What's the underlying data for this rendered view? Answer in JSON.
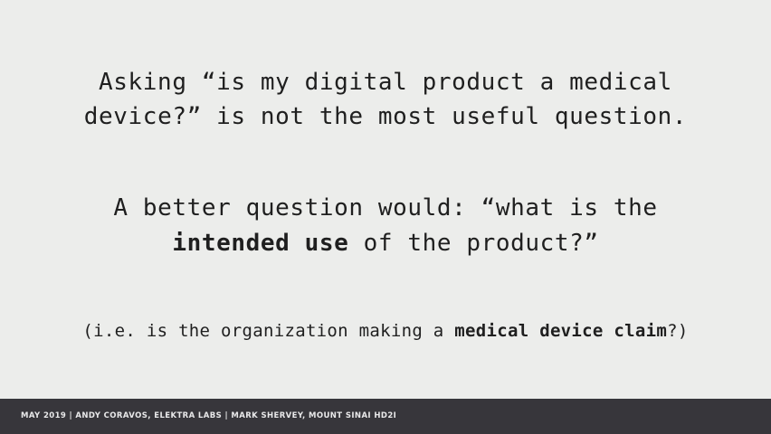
{
  "slide": {
    "paragraph1": {
      "line1": "Asking “is my digital product a medical",
      "line2": "device?” is not the most useful question."
    },
    "paragraph2": {
      "line1": "A better question would: “what is the",
      "line2_bold": "intended use",
      "line2_rest": " of the product?”"
    },
    "paragraph3": {
      "prefix": "(i.e. is the organization making a ",
      "bold": "medical device claim",
      "suffix": "?)"
    }
  },
  "footer": {
    "text": "MAY 2019 | ANDY CORAVOS, ELEKTRA LABS | MARK SHERVEY, MOUNT SINAI HD2I"
  },
  "colors": {
    "background": "#ecedeb",
    "text": "#1f1f1f",
    "footer_background": "#37363b",
    "footer_text": "#e9e9ea"
  }
}
